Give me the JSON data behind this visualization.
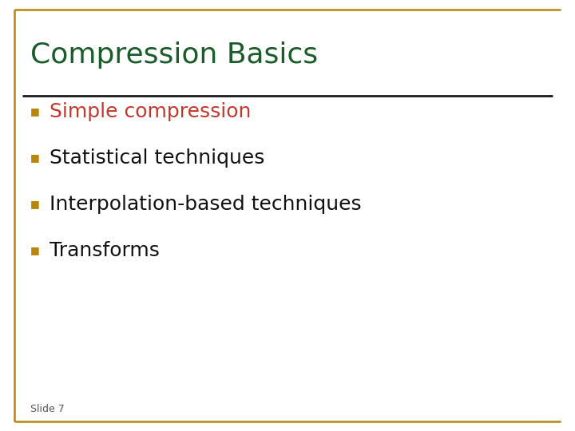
{
  "title": "Compression Basics",
  "title_color": "#1a5c2a",
  "background_color": "#ffffff",
  "border_color": "#b8860b",
  "divider_color": "#1a1a1a",
  "bullet_color": "#b8860b",
  "slide_label": "Slide 7",
  "slide_label_color": "#555555",
  "bullet_items": [
    {
      "text": "Simple compression",
      "color": "#c0392b"
    },
    {
      "text": "Statistical techniques",
      "color": "#111111"
    },
    {
      "text": "Interpolation-based techniques",
      "color": "#111111"
    },
    {
      "text": "Transforms",
      "color": "#111111"
    }
  ],
  "title_fontsize": 26,
  "bullet_fontsize": 18,
  "slide_label_fontsize": 9,
  "border_lw": 1.8,
  "divider_lw": 2.0
}
